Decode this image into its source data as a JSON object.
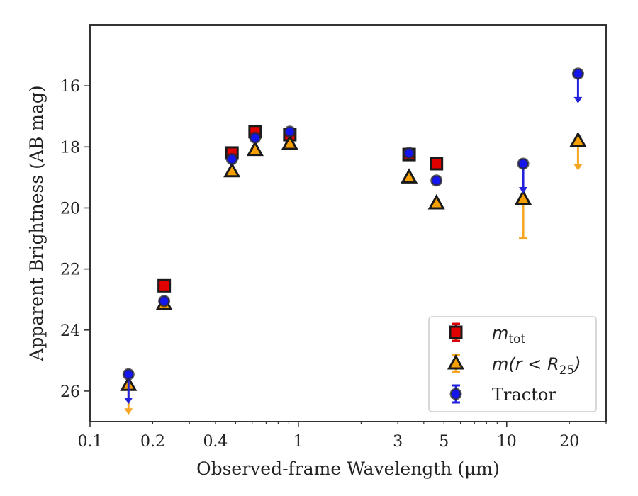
{
  "chart_data": {
    "type": "scatter",
    "xlabel": "Observed-frame Wavelength (μm)",
    "ylabel": "Apparent Brightness (AB mag)",
    "xscale": "log",
    "xlim": [
      0.1,
      30
    ],
    "ylim": [
      27,
      14
    ],
    "y_inverted": true,
    "xticks": [
      0.1,
      0.2,
      0.4,
      1,
      3,
      5,
      10,
      20
    ],
    "xtick_labels": [
      "0.1",
      "0.2",
      "0.4",
      "1",
      "3",
      "5",
      "10",
      "20"
    ],
    "yticks": [
      16,
      18,
      20,
      22,
      24,
      26
    ],
    "ytick_labels": [
      "16",
      "18",
      "20",
      "22",
      "24",
      "26"
    ],
    "legend": {
      "position": "lower-right",
      "entries": [
        {
          "key": "mtot",
          "label_main": "m",
          "label_sub": "tot"
        },
        {
          "key": "mr25",
          "label_main": "m(r < R",
          "label_sub": "25",
          "label_tail": ")"
        },
        {
          "key": "tractor",
          "label_main": "Tractor"
        }
      ]
    },
    "series": [
      {
        "key": "mtot",
        "name": "m_tot",
        "marker": "square",
        "color": "#e00000",
        "error_color": "#d40000",
        "points": [
          {
            "x": 0.227,
            "y": 22.55
          },
          {
            "x": 0.48,
            "y": 18.2
          },
          {
            "x": 0.62,
            "y": 17.5
          },
          {
            "x": 0.91,
            "y": 17.6
          },
          {
            "x": 3.4,
            "y": 18.25
          },
          {
            "x": 4.6,
            "y": 18.55
          }
        ]
      },
      {
        "key": "mr25",
        "name": "m(r<R25)",
        "marker": "triangle",
        "color": "#f5a000",
        "error_color": "#f5a623",
        "points": [
          {
            "x": 0.153,
            "y": 25.8,
            "upper_limit": true
          },
          {
            "x": 0.227,
            "y": 23.15
          },
          {
            "x": 0.48,
            "y": 18.8
          },
          {
            "x": 0.62,
            "y": 18.1
          },
          {
            "x": 0.91,
            "y": 17.9
          },
          {
            "x": 3.4,
            "y": 19.0
          },
          {
            "x": 4.6,
            "y": 19.85
          },
          {
            "x": 12,
            "y": 19.7,
            "yerr_high": 21.0
          },
          {
            "x": 22,
            "y": 17.8,
            "upper_limit": true
          }
        ]
      },
      {
        "key": "tractor",
        "name": "Tractor",
        "marker": "circle",
        "color": "#1515ee",
        "error_color": "#2222dd",
        "points": [
          {
            "x": 0.153,
            "y": 25.45,
            "upper_limit": true
          },
          {
            "x": 0.227,
            "y": 23.05
          },
          {
            "x": 0.48,
            "y": 18.4
          },
          {
            "x": 0.62,
            "y": 17.7
          },
          {
            "x": 0.91,
            "y": 17.5
          },
          {
            "x": 3.4,
            "y": 18.2
          },
          {
            "x": 4.6,
            "y": 19.1
          },
          {
            "x": 12,
            "y": 18.55,
            "upper_limit": true
          },
          {
            "x": 22,
            "y": 15.6,
            "upper_limit": true
          }
        ]
      }
    ]
  }
}
